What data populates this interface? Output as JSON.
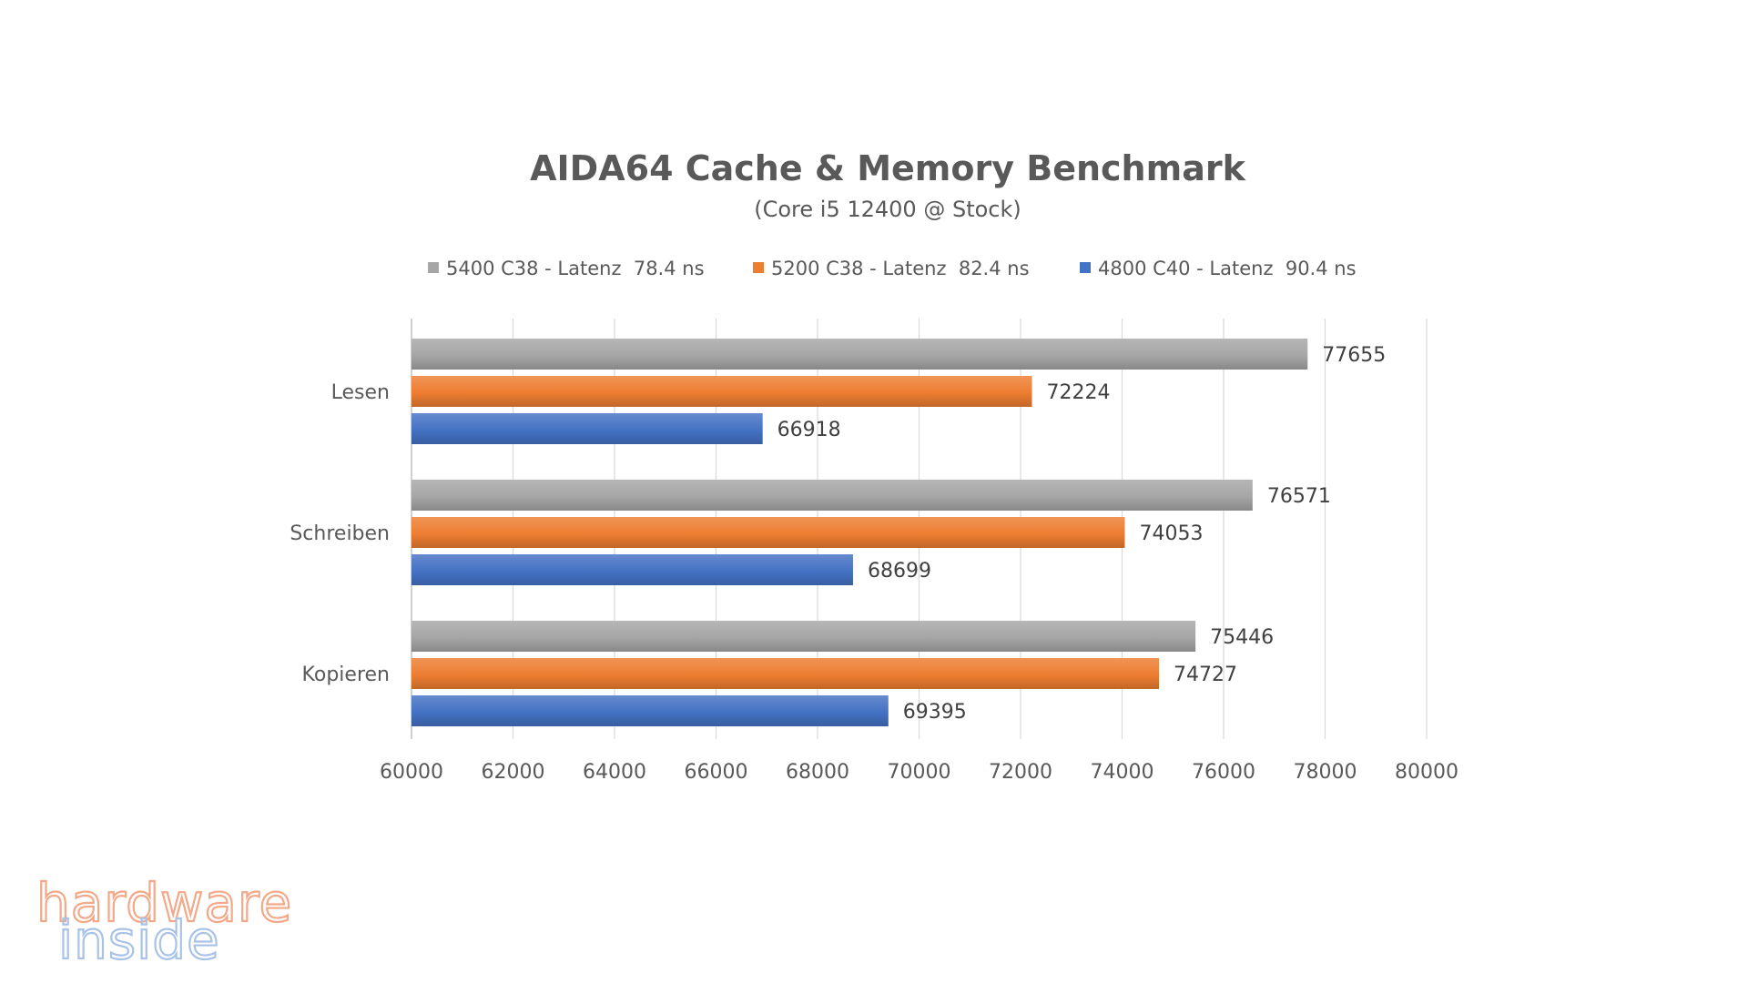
{
  "chart_data": {
    "type": "bar",
    "orientation": "horizontal",
    "title": "AIDA64 Cache & Memory Benchmark",
    "subtitle": "(Core i5 12400 @ Stock)",
    "categories": [
      "Lesen",
      "Schreiben",
      "Kopieren"
    ],
    "series": [
      {
        "name": "5400 C38 - Latenz  78.4 ns",
        "color": "#a6a6a6",
        "values": [
          77655,
          76571,
          75446
        ]
      },
      {
        "name": "5200 C38 - Latenz  82.4 ns",
        "color": "#ed7d31",
        "values": [
          72224,
          74053,
          74727
        ]
      },
      {
        "name": "4800 C40 - Latenz  90.4 ns",
        "color": "#4472c4",
        "values": [
          66918,
          68699,
          69395
        ]
      }
    ],
    "xlim": [
      60000,
      80000
    ],
    "x_ticks": [
      "60000",
      "62000",
      "64000",
      "66000",
      "68000",
      "70000",
      "72000",
      "74000",
      "76000",
      "78000",
      "80000"
    ],
    "xlabel": "",
    "ylabel": "",
    "grid": true,
    "legend_position": "top"
  },
  "watermark": {
    "line1": "hardware",
    "line2": "inside",
    "colors": [
      "#f2a98a",
      "#a9c3e6"
    ]
  }
}
